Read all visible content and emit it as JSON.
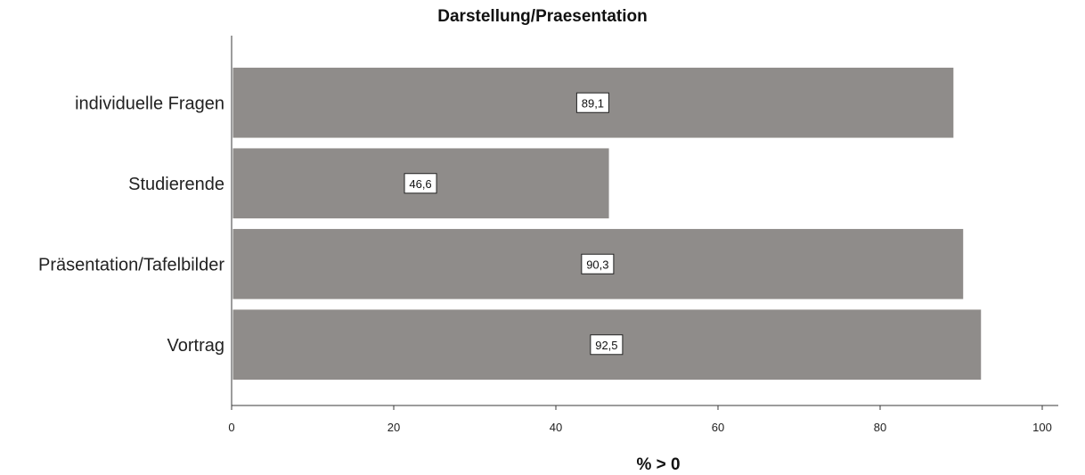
{
  "chart_data": {
    "type": "bar",
    "orientation": "horizontal",
    "title": "Darstellung/Praesentation",
    "xlabel": "% > 0",
    "ylabel": "",
    "categories": [
      "individuelle Fragen",
      "Studierende",
      "Präsentation/Tafelbilder",
      "Vortrag"
    ],
    "values": [
      89.1,
      46.6,
      90.3,
      92.5
    ],
    "data_labels": [
      "89,1",
      "46,6",
      "90,3",
      "92,5"
    ],
    "xlim": [
      0,
      100
    ],
    "xticks": [
      0,
      20,
      40,
      60,
      80,
      100
    ],
    "xtick_labels": [
      "0",
      "20",
      "40",
      "60",
      "80",
      "100"
    ],
    "grid": false,
    "legend": "none",
    "bar_color": "#8f8c8a",
    "bar_edge_color": "#ffffff",
    "label_box_color": "#ffffff"
  }
}
